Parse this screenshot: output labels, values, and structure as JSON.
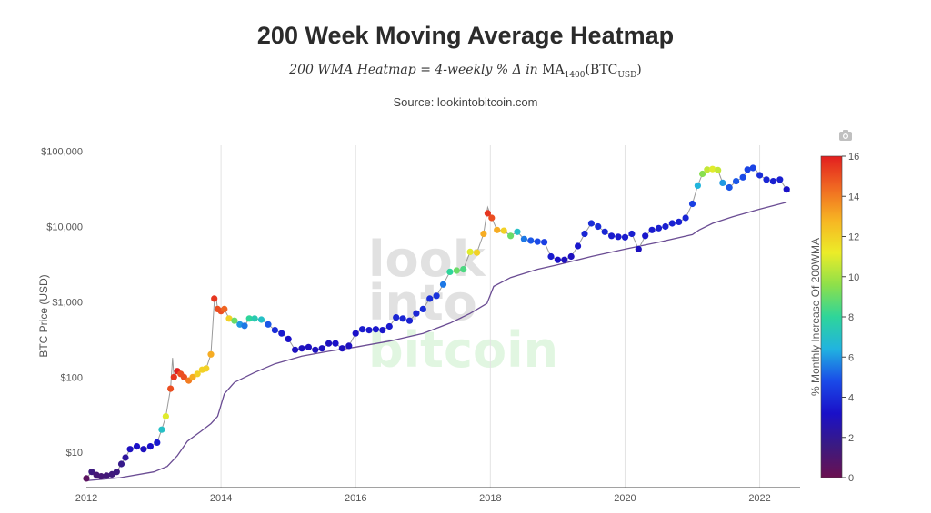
{
  "title": "200 Week Moving Average Heatmap",
  "subtitle": {
    "italic_part": "200 WMA Heatmap = 4-weekly % Δ in",
    "ma_text": "MA",
    "ma_sub": "1400",
    "btc_text": "(BTC",
    "btc_sub": "USD",
    "close": ")"
  },
  "source": "Source: lookintobitcoin.com",
  "watermark": {
    "line1": "look",
    "line2": "into",
    "line3": "bitcoin"
  },
  "icons": {
    "camera": "camera-icon"
  },
  "chart_data": {
    "type": "scatter",
    "xlabel": "",
    "ylabel": "BTC Price (USD)",
    "y_scale": "log",
    "xlim": [
      2012,
      2022.6
    ],
    "ylim": [
      3.4,
      120000
    ],
    "x_ticks": [
      2012,
      2014,
      2016,
      2018,
      2020,
      2022
    ],
    "x_tick_labels": [
      "2012",
      "2014",
      "2016",
      "2018",
      "2020",
      "2022"
    ],
    "y_ticks": [
      10,
      100,
      1000,
      10000,
      100000
    ],
    "y_tick_labels": [
      "$10",
      "$100",
      "$1,000",
      "$10,000",
      "$100,000"
    ],
    "grid": "vertical",
    "colorbar": {
      "title": "% Monthly Increase Of 200WMA",
      "min": 0,
      "max": 16,
      "ticks": [
        0,
        2,
        4,
        6,
        8,
        10,
        12,
        14,
        16
      ],
      "tick_labels": [
        "0",
        "2",
        "4",
        "6",
        "8",
        "10",
        "12",
        "14",
        "16"
      ],
      "colors": [
        "#6b1050",
        "#3a1a82",
        "#1a10c8",
        "#1a4ae8",
        "#21b3e0",
        "#2ed59a",
        "#8ee04a",
        "#ecec28",
        "#f7b523",
        "#f06a22",
        "#e21f1f"
      ]
    },
    "series": [
      {
        "name": "",
        "kind": "price_markers",
        "x": [
          2012.0,
          2012.08,
          2012.15,
          2012.22,
          2012.3,
          2012.38,
          2012.45,
          2012.52,
          2012.58,
          2012.65,
          2012.75,
          2012.85,
          2012.95,
          2013.05,
          2013.12,
          2013.18,
          2013.25,
          2013.3,
          2013.35,
          2013.4,
          2013.45,
          2013.52,
          2013.58,
          2013.65,
          2013.72,
          2013.78,
          2013.85,
          2013.9,
          2013.95,
          2014.0,
          2014.05,
          2014.12,
          2014.2,
          2014.28,
          2014.35,
          2014.42,
          2014.5,
          2014.6,
          2014.7,
          2014.8,
          2014.9,
          2015.0,
          2015.1,
          2015.2,
          2015.3,
          2015.4,
          2015.5,
          2015.6,
          2015.7,
          2015.8,
          2015.9,
          2016.0,
          2016.1,
          2016.2,
          2016.3,
          2016.4,
          2016.5,
          2016.6,
          2016.7,
          2016.8,
          2016.9,
          2017.0,
          2017.1,
          2017.2,
          2017.3,
          2017.4,
          2017.5,
          2017.6,
          2017.7,
          2017.8,
          2017.9,
          2017.96,
          2018.02,
          2018.1,
          2018.2,
          2018.3,
          2018.4,
          2018.5,
          2018.6,
          2018.7,
          2018.8,
          2018.9,
          2019.0,
          2019.1,
          2019.2,
          2019.3,
          2019.4,
          2019.5,
          2019.6,
          2019.7,
          2019.8,
          2019.9,
          2020.0,
          2020.1,
          2020.2,
          2020.3,
          2020.4,
          2020.5,
          2020.6,
          2020.7,
          2020.8,
          2020.9,
          2021.0,
          2021.08,
          2021.15,
          2021.22,
          2021.3,
          2021.38,
          2021.45,
          2021.55,
          2021.65,
          2021.75,
          2021.82,
          2021.9,
          2022.0,
          2022.1,
          2022.2,
          2022.3,
          2022.4
        ],
        "y": [
          4.5,
          5.5,
          5,
          4.8,
          4.9,
          5.1,
          5.5,
          7,
          8.5,
          11,
          12,
          11,
          12,
          13.5,
          20,
          30,
          70,
          100,
          120,
          110,
          100,
          90,
          100,
          110,
          125,
          130,
          200,
          1100,
          800,
          750,
          800,
          600,
          560,
          500,
          480,
          600,
          600,
          580,
          500,
          420,
          380,
          320,
          230,
          240,
          250,
          230,
          240,
          280,
          280,
          240,
          260,
          380,
          430,
          420,
          430,
          420,
          470,
          620,
          600,
          560,
          700,
          800,
          1100,
          1200,
          1700,
          2500,
          2600,
          2700,
          4600,
          4500,
          8000,
          15000,
          13000,
          9000,
          8800,
          7500,
          8500,
          6800,
          6500,
          6300,
          6200,
          4000,
          3600,
          3600,
          4000,
          5500,
          8000,
          11000,
          10000,
          8500,
          7500,
          7300,
          7200,
          8000,
          5000,
          7500,
          9000,
          9500,
          10000,
          11000,
          11500,
          13000,
          20000,
          35000,
          50000,
          57000,
          58000,
          56000,
          38000,
          33000,
          40000,
          45000,
          57000,
          60000,
          48000,
          42000,
          40000,
          42000,
          31000
        ],
        "color_values": [
          0.5,
          1.5,
          1.2,
          1.2,
          1.3,
          1.4,
          1.5,
          1.8,
          2.2,
          3.0,
          3.2,
          3.0,
          3.2,
          3.5,
          7,
          11,
          15,
          15.5,
          16,
          15,
          15,
          14,
          13,
          12,
          12,
          12,
          13,
          15.5,
          15,
          15,
          14.5,
          12,
          9,
          6,
          5.5,
          8,
          7.5,
          7,
          5,
          4,
          3.5,
          3.2,
          3.0,
          3.0,
          3.0,
          3.0,
          3.0,
          3.0,
          3.2,
          3.0,
          3.0,
          3.2,
          3.5,
          3.4,
          3.4,
          3.4,
          3.5,
          3.8,
          3.8,
          3.7,
          3.8,
          4.0,
          4.0,
          4.2,
          5.5,
          8,
          9,
          8.5,
          11,
          12,
          13,
          15.5,
          15,
          13,
          12,
          9,
          7,
          5.5,
          5,
          4.8,
          4.5,
          3.5,
          3.2,
          3.0,
          3.0,
          3.4,
          3.8,
          4.0,
          4.0,
          3.8,
          3.5,
          3.5,
          3.5,
          3.6,
          3.0,
          3.4,
          3.5,
          3.6,
          3.6,
          3.7,
          3.7,
          3.8,
          4.5,
          6.5,
          9.5,
          10.5,
          11,
          10.5,
          6,
          5,
          5,
          4.8,
          4.6,
          4.6,
          4.0,
          3.8,
          3.6,
          3.6,
          3.2
        ]
      },
      {
        "name": "",
        "kind": "200wma_line",
        "color": "#6a4c93",
        "x": [
          2012.0,
          2012.5,
          2013.0,
          2013.2,
          2013.35,
          2013.5,
          2013.7,
          2013.85,
          2013.95,
          2014.05,
          2014.2,
          2014.5,
          2014.8,
          2015.2,
          2015.6,
          2016.0,
          2016.5,
          2017.0,
          2017.4,
          2017.7,
          2017.95,
          2018.05,
          2018.3,
          2018.7,
          2019.0,
          2019.5,
          2020.0,
          2020.5,
          2021.0,
          2021.1,
          2021.3,
          2021.6,
          2022.0,
          2022.4
        ],
        "y": [
          4.2,
          4.6,
          5.5,
          6.5,
          9,
          14,
          19,
          24,
          30,
          60,
          85,
          115,
          150,
          190,
          220,
          250,
          300,
          380,
          520,
          700,
          950,
          1600,
          2100,
          2700,
          3100,
          4000,
          5000,
          6200,
          7800,
          9000,
          11000,
          13500,
          17000,
          21000
        ]
      },
      {
        "name": "",
        "kind": "price_line",
        "color": "#9a9a9a",
        "x": [
          2012.0,
          2012.08,
          2012.15,
          2012.22,
          2012.3,
          2012.38,
          2012.45,
          2012.52,
          2012.58,
          2012.65,
          2012.75,
          2012.85,
          2012.95,
          2013.05,
          2013.12,
          2013.18,
          2013.25,
          2013.28,
          2013.3,
          2013.35,
          2013.4,
          2013.45,
          2013.52,
          2013.58,
          2013.65,
          2013.72,
          2013.78,
          2013.85,
          2013.9,
          2013.93,
          2013.95,
          2014.0,
          2014.05,
          2014.12,
          2014.2,
          2014.28,
          2014.35,
          2014.42,
          2014.5,
          2014.6,
          2014.7,
          2014.8,
          2014.9,
          2015.0,
          2015.1,
          2015.2,
          2015.3,
          2015.4,
          2015.5,
          2015.6,
          2015.7,
          2015.8,
          2015.9,
          2016.0,
          2016.1,
          2016.2,
          2016.3,
          2016.4,
          2016.5,
          2016.6,
          2016.7,
          2016.8,
          2016.9,
          2017.0,
          2017.1,
          2017.2,
          2017.3,
          2017.4,
          2017.5,
          2017.6,
          2017.7,
          2017.8,
          2017.9,
          2017.96,
          2018.02,
          2018.1,
          2018.2,
          2018.3,
          2018.4,
          2018.5,
          2018.6,
          2018.7,
          2018.8,
          2018.9,
          2019.0,
          2019.1,
          2019.2,
          2019.3,
          2019.4,
          2019.5,
          2019.6,
          2019.7,
          2019.8,
          2019.9,
          2020.0,
          2020.1,
          2020.2,
          2020.3,
          2020.4,
          2020.5,
          2020.6,
          2020.7,
          2020.8,
          2020.9,
          2021.0,
          2021.08,
          2021.15,
          2021.22,
          2021.3,
          2021.38,
          2021.45,
          2021.55,
          2021.65,
          2021.75,
          2021.82,
          2021.9,
          2022.0,
          2022.1,
          2022.2,
          2022.3,
          2022.4,
          2022.45
        ],
        "y": [
          4.5,
          5.5,
          5,
          4.8,
          4.9,
          5.1,
          5.5,
          7,
          8.5,
          11,
          12,
          11,
          12,
          13.5,
          20,
          30,
          70,
          180,
          100,
          120,
          110,
          100,
          90,
          100,
          110,
          125,
          130,
          200,
          1000,
          1100,
          800,
          750,
          800,
          600,
          560,
          500,
          480,
          600,
          600,
          580,
          500,
          420,
          380,
          320,
          230,
          240,
          250,
          230,
          240,
          280,
          280,
          240,
          260,
          380,
          430,
          420,
          430,
          420,
          470,
          620,
          600,
          560,
          700,
          800,
          1100,
          1200,
          1700,
          2500,
          2600,
          2700,
          4600,
          4500,
          8000,
          18000,
          13000,
          9000,
          8800,
          7500,
          8500,
          6800,
          6500,
          6300,
          6200,
          4000,
          3600,
          3600,
          4000,
          5500,
          8000,
          11000,
          10000,
          8500,
          7500,
          7300,
          7200,
          8000,
          5000,
          7500,
          9000,
          9500,
          10000,
          11000,
          11500,
          13000,
          20000,
          35000,
          50000,
          57000,
          60000,
          56000,
          38000,
          33000,
          40000,
          45000,
          57000,
          64000,
          48000,
          42000,
          40000,
          42000,
          31000,
          29000
        ]
      }
    ]
  }
}
